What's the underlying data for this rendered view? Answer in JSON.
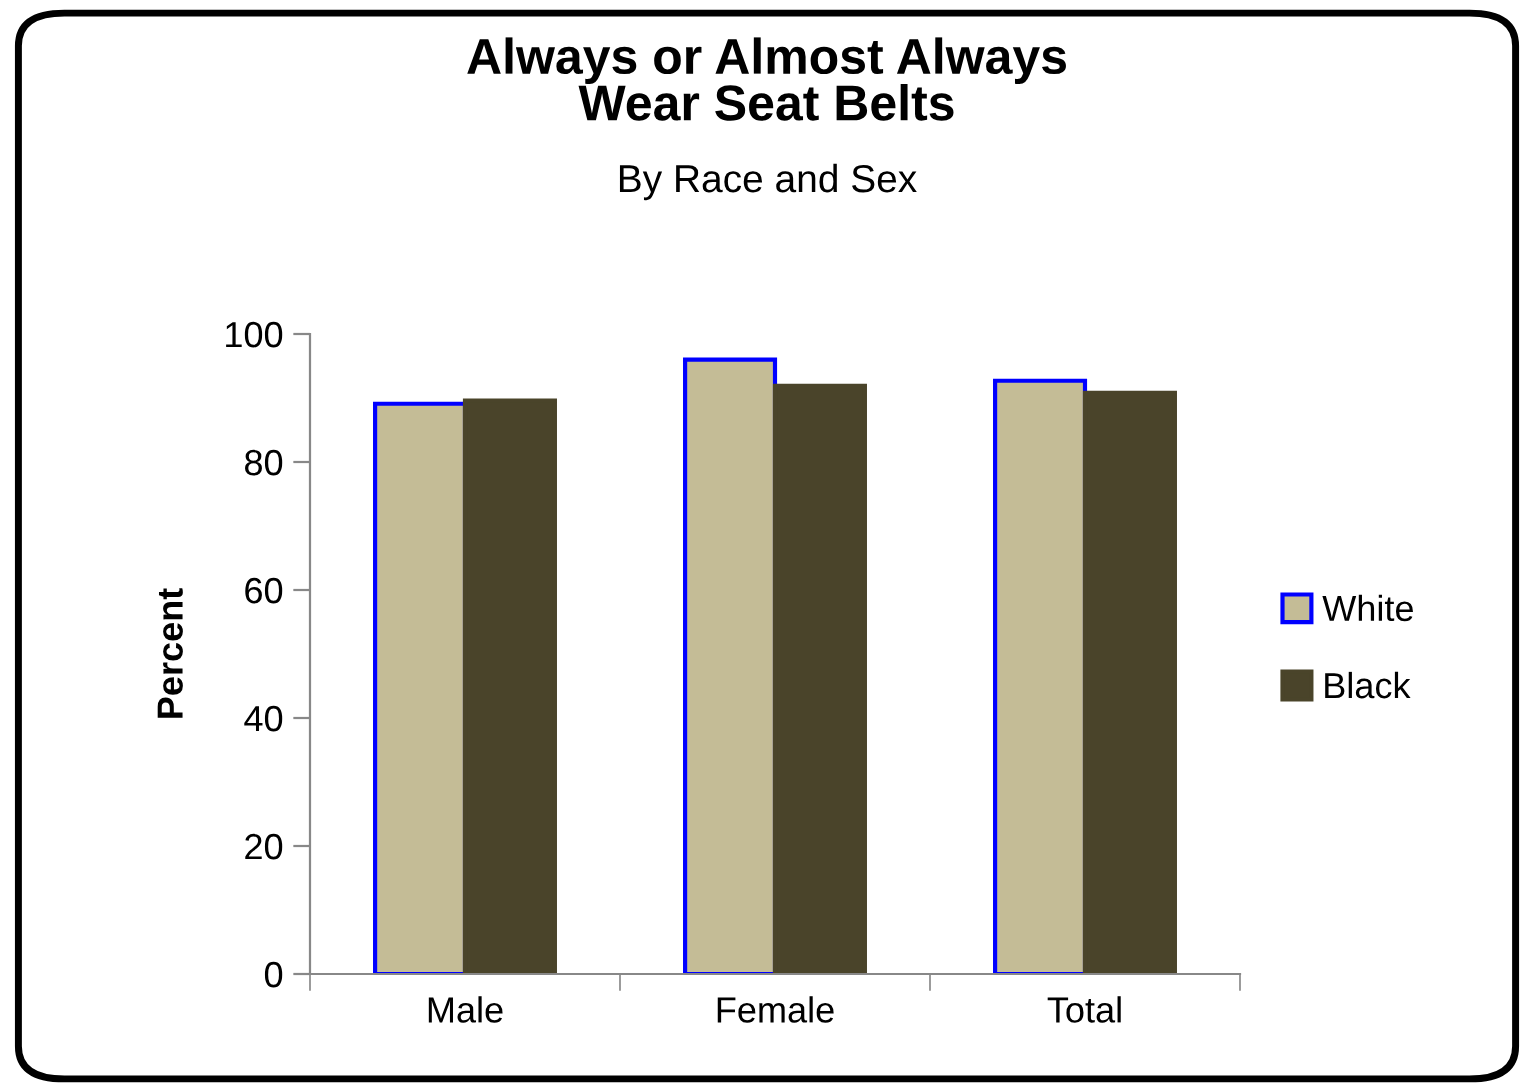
{
  "chart_data": {
    "type": "bar",
    "title": "Always or Almost Always\nWear Seat Belts",
    "subtitle": "By Race and Sex",
    "ylabel": "Percent",
    "categories": [
      "Male",
      "Female",
      "Total"
    ],
    "series": [
      {
        "name": "White",
        "color": "#c4bc96",
        "values": [
          89.1,
          96.0,
          92.7
        ]
      },
      {
        "name": "Black",
        "color": "#4a442a",
        "values": [
          89.6,
          91.9,
          90.8
        ]
      }
    ],
    "ylim": [
      0,
      100
    ],
    "yticks": [
      0,
      20,
      40,
      60,
      80,
      100
    ],
    "grid": false,
    "legend": "right"
  }
}
